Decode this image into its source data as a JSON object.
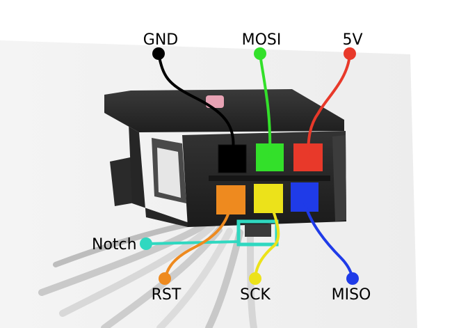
{
  "labels": {
    "gnd": "GND",
    "mosi": "MOSI",
    "v5": "5V",
    "notch": "Notch",
    "rst": "RST",
    "sck": "SCK",
    "miso": "MISO"
  },
  "colors": {
    "gnd": "#000000",
    "mosi": "#33e02a",
    "v5": "#e8392a",
    "rst": "#ee8a1f",
    "sck": "#ece21a",
    "miso": "#1f3be8",
    "notch": "#2fd8c0",
    "connector_body": "#2b2b2b"
  }
}
